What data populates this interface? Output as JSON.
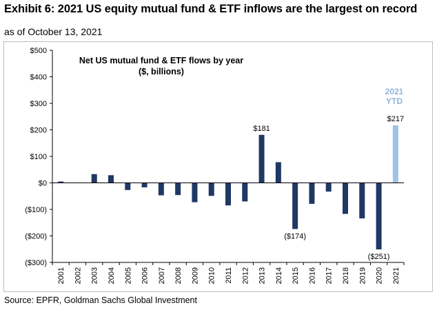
{
  "header": {
    "title": "Exhibit 6: 2021 US equity mutual fund & ETF inflows are the largest on record",
    "subtitle": "as of October 13, 2021"
  },
  "footer": {
    "source": "Source: EPFR, Goldman Sachs Global Investment"
  },
  "chart_data": {
    "type": "bar",
    "title": "Net US mutual fund & ETF flows by year",
    "subtitle": "($, billions)",
    "categories": [
      "2001",
      "2002",
      "2003",
      "2004",
      "2005",
      "2006",
      "2007",
      "2008",
      "2009",
      "2010",
      "2011",
      "2012",
      "2013",
      "2014",
      "2015",
      "2016",
      "2017",
      "2018",
      "2019",
      "2020",
      "2021"
    ],
    "values": [
      5,
      0,
      33,
      29,
      -27,
      -17,
      -47,
      -46,
      -73,
      -49,
      -85,
      -70,
      181,
      78,
      -174,
      -79,
      -33,
      -117,
      -134,
      -251,
      217
    ],
    "ylim": [
      -300,
      500
    ],
    "yticks": [
      -300,
      -200,
      -100,
      0,
      100,
      200,
      300,
      400,
      500
    ],
    "ytick_labels": [
      "($300)",
      "($200)",
      "($100)",
      "$0",
      "$100",
      "$200",
      "$300",
      "$400",
      "$500"
    ],
    "data_labels": [
      {
        "category": "2013",
        "text": "$181"
      },
      {
        "category": "2015",
        "text": "($174)"
      },
      {
        "category": "2020",
        "text": "($251)"
      },
      {
        "category": "2021",
        "text": "$217"
      }
    ],
    "highlight_annotation": {
      "category": "2021",
      "lines": [
        "2021",
        "YTD"
      ]
    },
    "colors": {
      "default": "#1f3864",
      "highlight": "#9dc3e6",
      "highlight_text": "#8fb6dc"
    },
    "grid": false,
    "xlabel": "",
    "ylabel": ""
  }
}
